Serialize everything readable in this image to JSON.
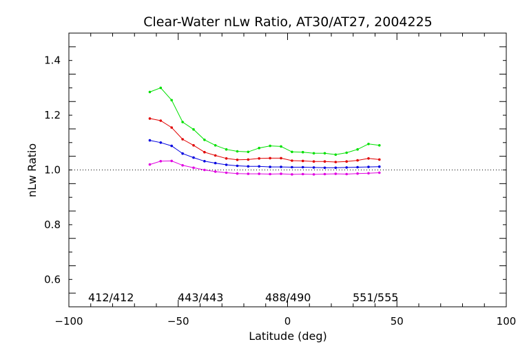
{
  "chart_data": {
    "type": "line",
    "title": "Clear-Water nLw Ratio, AT30/AT27, 2004225",
    "xlabel": "Latitude (deg)",
    "ylabel": "nLw Ratio",
    "xlim": [
      -100,
      100
    ],
    "ylim": [
      0.5,
      1.5
    ],
    "x_ticks": [
      "−100",
      "−50",
      "0",
      "50",
      "100"
    ],
    "y_ticks": [
      "0.6",
      "0.8",
      "1.0",
      "1.2",
      "1.4"
    ],
    "reference_line": {
      "y": 1.0,
      "style": "dotted"
    },
    "x": [
      -63,
      -58,
      -53,
      -48,
      -43,
      -38,
      -33,
      -28,
      -23,
      -18,
      -13,
      -8,
      -3,
      2,
      7,
      12,
      17,
      22,
      27,
      32,
      37,
      42
    ],
    "series": [
      {
        "name": "412/412",
        "color": "#00e000",
        "values": [
          1.285,
          1.3,
          1.255,
          1.175,
          1.148,
          1.11,
          1.09,
          1.075,
          1.068,
          1.066,
          1.08,
          1.088,
          1.086,
          1.066,
          1.065,
          1.061,
          1.061,
          1.056,
          1.063,
          1.075,
          1.095,
          1.09
        ]
      },
      {
        "name": "443/443",
        "color": "#e00000",
        "values": [
          1.188,
          1.18,
          1.155,
          1.112,
          1.09,
          1.065,
          1.053,
          1.042,
          1.037,
          1.038,
          1.042,
          1.043,
          1.043,
          1.034,
          1.033,
          1.031,
          1.031,
          1.029,
          1.031,
          1.035,
          1.042,
          1.038
        ]
      },
      {
        "name": "488/490",
        "color": "#0000e0",
        "values": [
          1.108,
          1.1,
          1.088,
          1.06,
          1.045,
          1.032,
          1.025,
          1.019,
          1.015,
          1.013,
          1.013,
          1.011,
          1.011,
          1.01,
          1.01,
          1.009,
          1.008,
          1.008,
          1.009,
          1.01,
          1.011,
          1.012
        ]
      },
      {
        "name": "551/555",
        "color": "#e000e0",
        "values": [
          1.02,
          1.032,
          1.033,
          1.017,
          1.008,
          1.0,
          0.994,
          0.99,
          0.987,
          0.986,
          0.986,
          0.985,
          0.986,
          0.984,
          0.985,
          0.984,
          0.985,
          0.986,
          0.985,
          0.987,
          0.988,
          0.99
        ]
      }
    ]
  }
}
